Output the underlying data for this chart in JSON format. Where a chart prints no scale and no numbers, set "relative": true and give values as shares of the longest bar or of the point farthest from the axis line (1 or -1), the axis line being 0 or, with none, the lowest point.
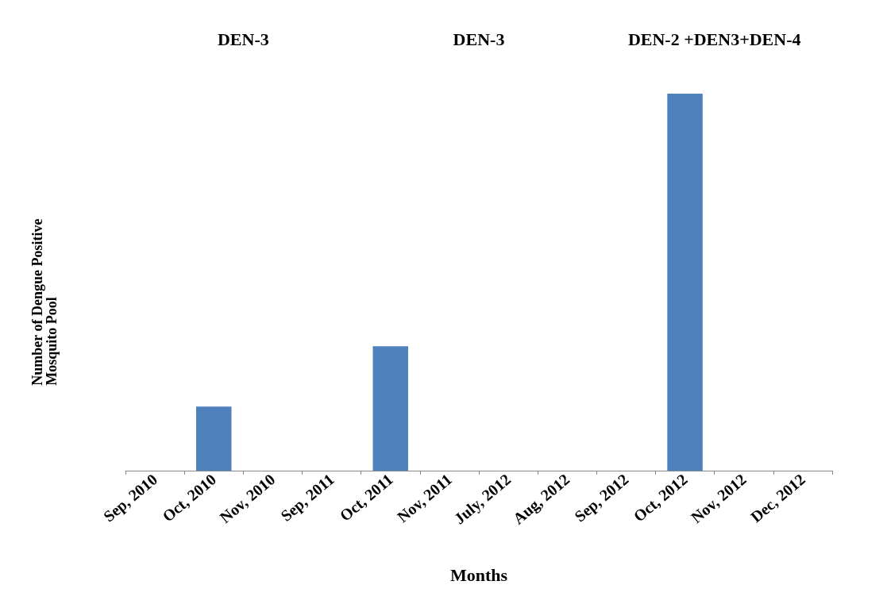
{
  "chart_data": {
    "type": "bar",
    "xlabel": "Months",
    "ylabel": "Number of Dengue Positive\nMosquito Pool",
    "relative": true,
    "categories": [
      "Sep, 2010",
      "Oct, 2010",
      "Nov, 2010",
      "Sep, 2011",
      "Oct, 2011",
      "Nov, 2011",
      "July, 2012",
      "Aug, 2012",
      "Sep, 2012",
      "Oct, 2012",
      "Nov, 2012",
      "Dec, 2012"
    ],
    "values": [
      0,
      0.17,
      0,
      0,
      0.33,
      0,
      0,
      0,
      0,
      1,
      0,
      0
    ],
    "color": "#4f81bd",
    "annotations": [
      "DEN-3",
      "DEN-3",
      "DEN-2 +DEN3+DEN-4"
    ],
    "grid": false
  }
}
